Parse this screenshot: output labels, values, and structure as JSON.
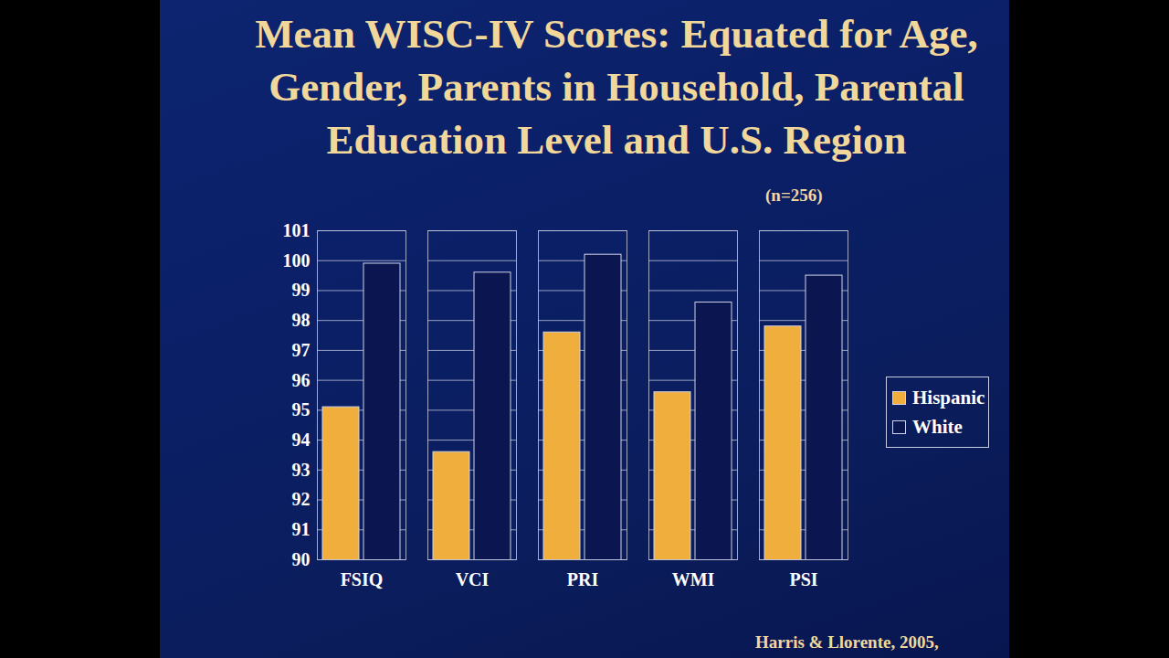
{
  "chart_data": {
    "type": "bar",
    "title": "Mean WISC-IV Scores: Equated for Age, Gender, Parents in Household, Parental Education Level and U.S. Region",
    "annotations": [
      "(n=256)",
      "Harris & Llorente, 2005,"
    ],
    "categories": [
      "FSIQ",
      "VCI",
      "PRI",
      "WMI",
      "PSI"
    ],
    "series": [
      {
        "name": "Hispanic",
        "color": "#f0ae3c",
        "values": [
          95.1,
          93.6,
          97.6,
          95.6,
          97.8
        ]
      },
      {
        "name": "White",
        "color": "#0b1650",
        "values": [
          99.9,
          99.6,
          100.2,
          98.6,
          99.5
        ]
      }
    ],
    "ylim": [
      90,
      101
    ],
    "yticks": [
      90,
      91,
      92,
      93,
      94,
      95,
      96,
      97,
      98,
      99,
      100,
      101
    ],
    "grid": true,
    "legend": "right"
  }
}
